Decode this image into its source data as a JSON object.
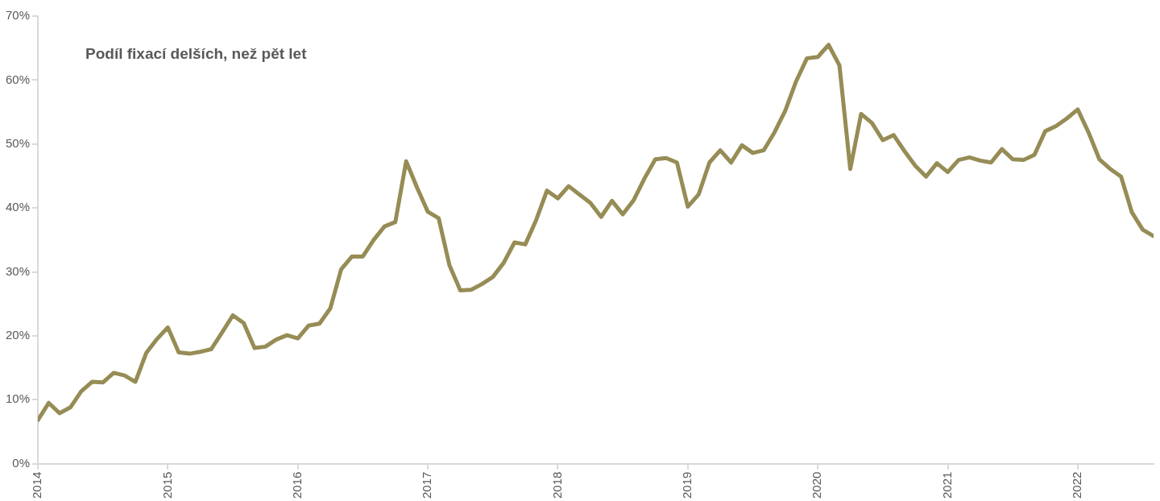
{
  "chart_data": {
    "type": "line",
    "title": "Podíl fixací delších, než pět let",
    "x": [
      "2014-01",
      "2014-02",
      "2014-03",
      "2014-04",
      "2014-05",
      "2014-06",
      "2014-07",
      "2014-08",
      "2014-09",
      "2014-10",
      "2014-11",
      "2014-12",
      "2015-01",
      "2015-02",
      "2015-03",
      "2015-04",
      "2015-05",
      "2015-06",
      "2015-07",
      "2015-08",
      "2015-09",
      "2015-10",
      "2015-11",
      "2015-12",
      "2016-01",
      "2016-02",
      "2016-03",
      "2016-04",
      "2016-05",
      "2016-06",
      "2016-07",
      "2016-08",
      "2016-09",
      "2016-10",
      "2016-11",
      "2016-12",
      "2017-01",
      "2017-02",
      "2017-03",
      "2017-04",
      "2017-05",
      "2017-06",
      "2017-07",
      "2017-08",
      "2017-09",
      "2017-10",
      "2017-11",
      "2017-12",
      "2018-01",
      "2018-02",
      "2018-03",
      "2018-04",
      "2018-05",
      "2018-06",
      "2018-07",
      "2018-08",
      "2018-09",
      "2018-10",
      "2018-11",
      "2018-12",
      "2019-01",
      "2019-02",
      "2019-03",
      "2019-04",
      "2019-05",
      "2019-06",
      "2019-07",
      "2019-08",
      "2019-09",
      "2019-10",
      "2019-11",
      "2019-12",
      "2020-01",
      "2020-02",
      "2020-03",
      "2020-04",
      "2020-05",
      "2020-06",
      "2020-07",
      "2020-08",
      "2020-09",
      "2020-10",
      "2020-11",
      "2020-12",
      "2021-01",
      "2021-02",
      "2021-03",
      "2021-04",
      "2021-05",
      "2021-06",
      "2021-07",
      "2021-08",
      "2021-09",
      "2021-10",
      "2021-11",
      "2021-12",
      "2022-01",
      "2022-02",
      "2022-03",
      "2022-04",
      "2022-05",
      "2022-06",
      "2022-07",
      "2022-08"
    ],
    "series": [
      {
        "color": "#968c55",
        "values": [
          6.8,
          9.5,
          7.9,
          8.8,
          11.3,
          12.8,
          12.7,
          14.2,
          13.8,
          12.8,
          17.3,
          19.5,
          21.3,
          17.4,
          17.2,
          17.5,
          17.9,
          20.5,
          23.2,
          22.0,
          18.1,
          18.3,
          19.4,
          20.1,
          19.6,
          21.6,
          21.9,
          24.3,
          30.4,
          32.4,
          32.4,
          35.0,
          37.1,
          37.8,
          47.3,
          43.2,
          39.4,
          38.4,
          31.0,
          27.1,
          27.2,
          28.1,
          29.2,
          31.4,
          34.6,
          34.3,
          38.1,
          42.7,
          41.5,
          43.4,
          42.1,
          40.8,
          38.6,
          41.1,
          39.0,
          41.2,
          44.6,
          47.6,
          47.8,
          47.1,
          40.2,
          42.1,
          47.1,
          49.0,
          47.1,
          49.8,
          48.6,
          49.0,
          51.8,
          55.2,
          59.8,
          63.4,
          63.6,
          65.5,
          62.3,
          46.1,
          54.7,
          53.3,
          50.6,
          51.4,
          48.9,
          46.6,
          44.9,
          47.0,
          45.6,
          47.5,
          47.9,
          47.4,
          47.1,
          49.2,
          47.6,
          47.5,
          48.3,
          52.0,
          52.8,
          54.0,
          55.4,
          51.8,
          47.6,
          46.1,
          44.9,
          39.3,
          36.6,
          35.6
        ]
      }
    ],
    "xlim": [
      "2014-01",
      "2022-08"
    ],
    "xticks": [
      {
        "value": "2014-01",
        "label": "2014"
      },
      {
        "value": "2015-01",
        "label": "2015"
      },
      {
        "value": "2016-01",
        "label": "2016"
      },
      {
        "value": "2017-01",
        "label": "2017"
      },
      {
        "value": "2018-01",
        "label": "2018"
      },
      {
        "value": "2019-01",
        "label": "2019"
      },
      {
        "value": "2020-01",
        "label": "2020"
      },
      {
        "value": "2021-01",
        "label": "2021"
      },
      {
        "value": "2022-01",
        "label": "2022"
      }
    ],
    "ylim": [
      0,
      70
    ],
    "yticks": [
      {
        "value": 0,
        "label": "0%"
      },
      {
        "value": 10,
        "label": "10%"
      },
      {
        "value": 20,
        "label": "20%"
      },
      {
        "value": 30,
        "label": "30%"
      },
      {
        "value": 40,
        "label": "40%"
      },
      {
        "value": 50,
        "label": "50%"
      },
      {
        "value": 60,
        "label": "60%"
      },
      {
        "value": 70,
        "label": "70%"
      }
    ],
    "grid": false,
    "legend": false,
    "marker": "none",
    "line_style": "solid"
  }
}
